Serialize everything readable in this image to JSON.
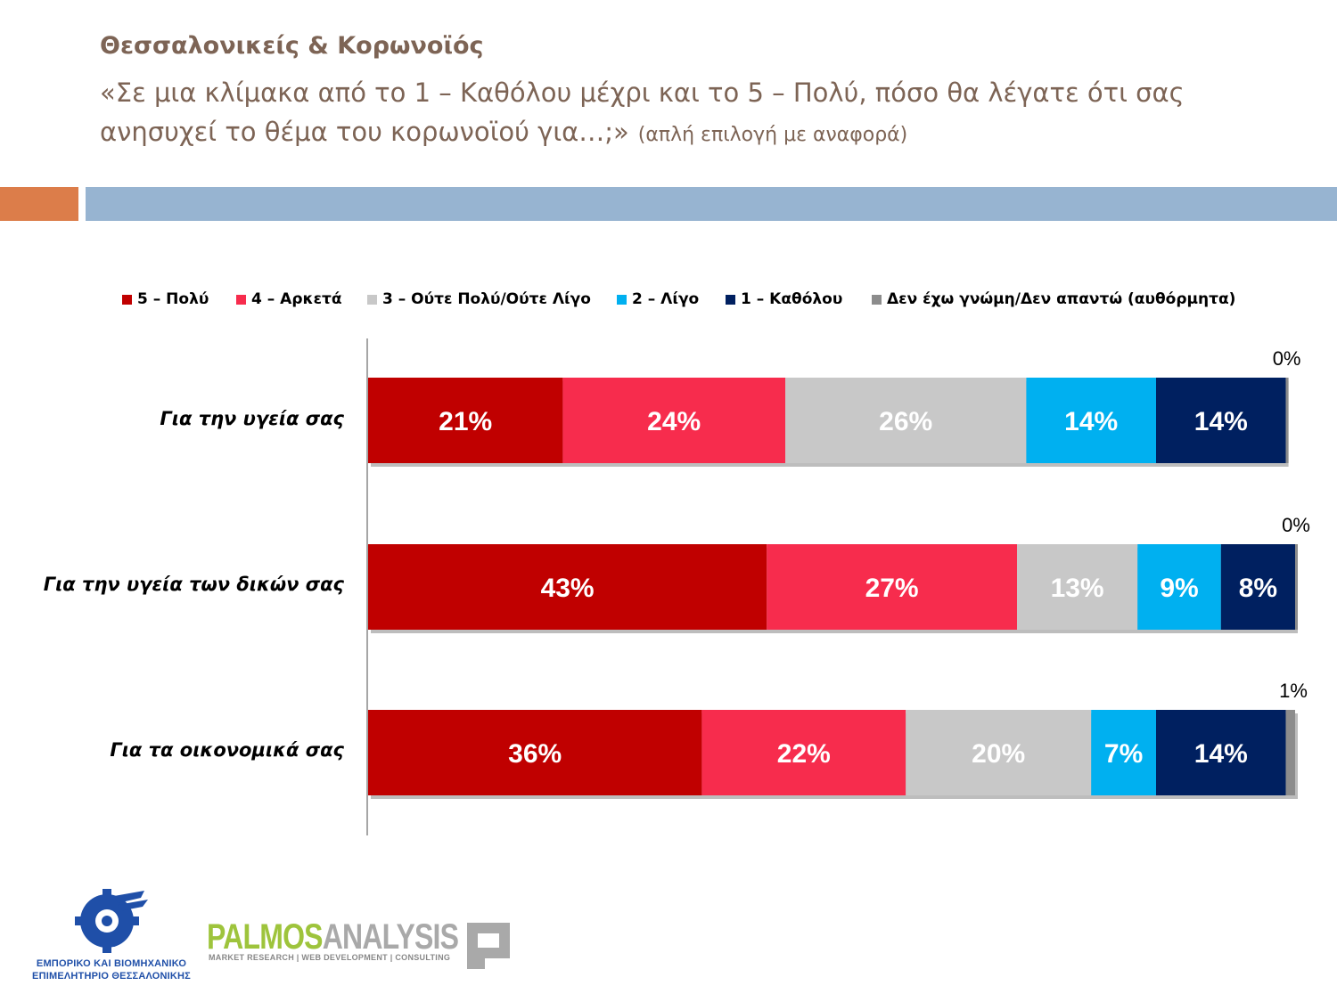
{
  "header": {
    "title": "Θεσσαλονικείς & Κορωνοϊός",
    "question": "«Σε μια κλίμακα από το 1 – Καθόλου μέχρι και το 5 – Πολύ, πόσο θα λέγατε ότι σας ανησυχεί το θέμα του κορωνοϊού για…;»",
    "question_note": "(απλή επιλογή με αναφορά)"
  },
  "chart_data": {
    "type": "bar",
    "orientation": "horizontal",
    "stacked": true,
    "categories": [
      "Για την υγεία σας",
      "Για την υγεία των δικών σας",
      "Για τα οικονομικά σας"
    ],
    "series": [
      {
        "name": "5 – Πολύ",
        "color": "#c00000",
        "label_color": "#ffffff",
        "values": [
          21,
          43,
          36
        ]
      },
      {
        "name": "4 – Αρκετά",
        "color": "#f72c4d",
        "label_color": "#ffffff",
        "values": [
          24,
          27,
          22
        ]
      },
      {
        "name": "3 – Ούτε Πολύ/Ούτε Λίγο",
        "color": "#c8c8c8",
        "label_color": "#ffffff",
        "values": [
          26,
          13,
          20
        ]
      },
      {
        "name": "2 – Λίγο",
        "color": "#00b0f0",
        "label_color": "#ffffff",
        "values": [
          14,
          9,
          7
        ]
      },
      {
        "name": "1 – Καθόλου",
        "color": "#002060",
        "label_color": "#ffffff",
        "values": [
          14,
          8,
          14
        ]
      },
      {
        "name": "Δεν έχω γνώμη/Δεν απαντώ (αυθόρμητα)",
        "color": "#8c8c8c",
        "label_color": "#000000",
        "values": [
          0,
          0,
          1
        ]
      }
    ],
    "value_suffix": "%",
    "legend_position": "top",
    "grid": false
  },
  "logos": {
    "chamber_line1": "ΕΜΠΟΡΙΚΟ ΚΑΙ ΒΙΟΜΗΧΑΝΙΚΟ",
    "chamber_line2": "ΕΠΙΜΕΛΗΤΗΡΙΟ ΘΕΣΣΑΛΟΝΙΚΗΣ",
    "palmos_part1": "PALMOS",
    "palmos_part2": "ANALYSIS",
    "palmos_tagline": "MARKET RESEARCH | WEB DEVELOPMENT | CONSULTING"
  }
}
